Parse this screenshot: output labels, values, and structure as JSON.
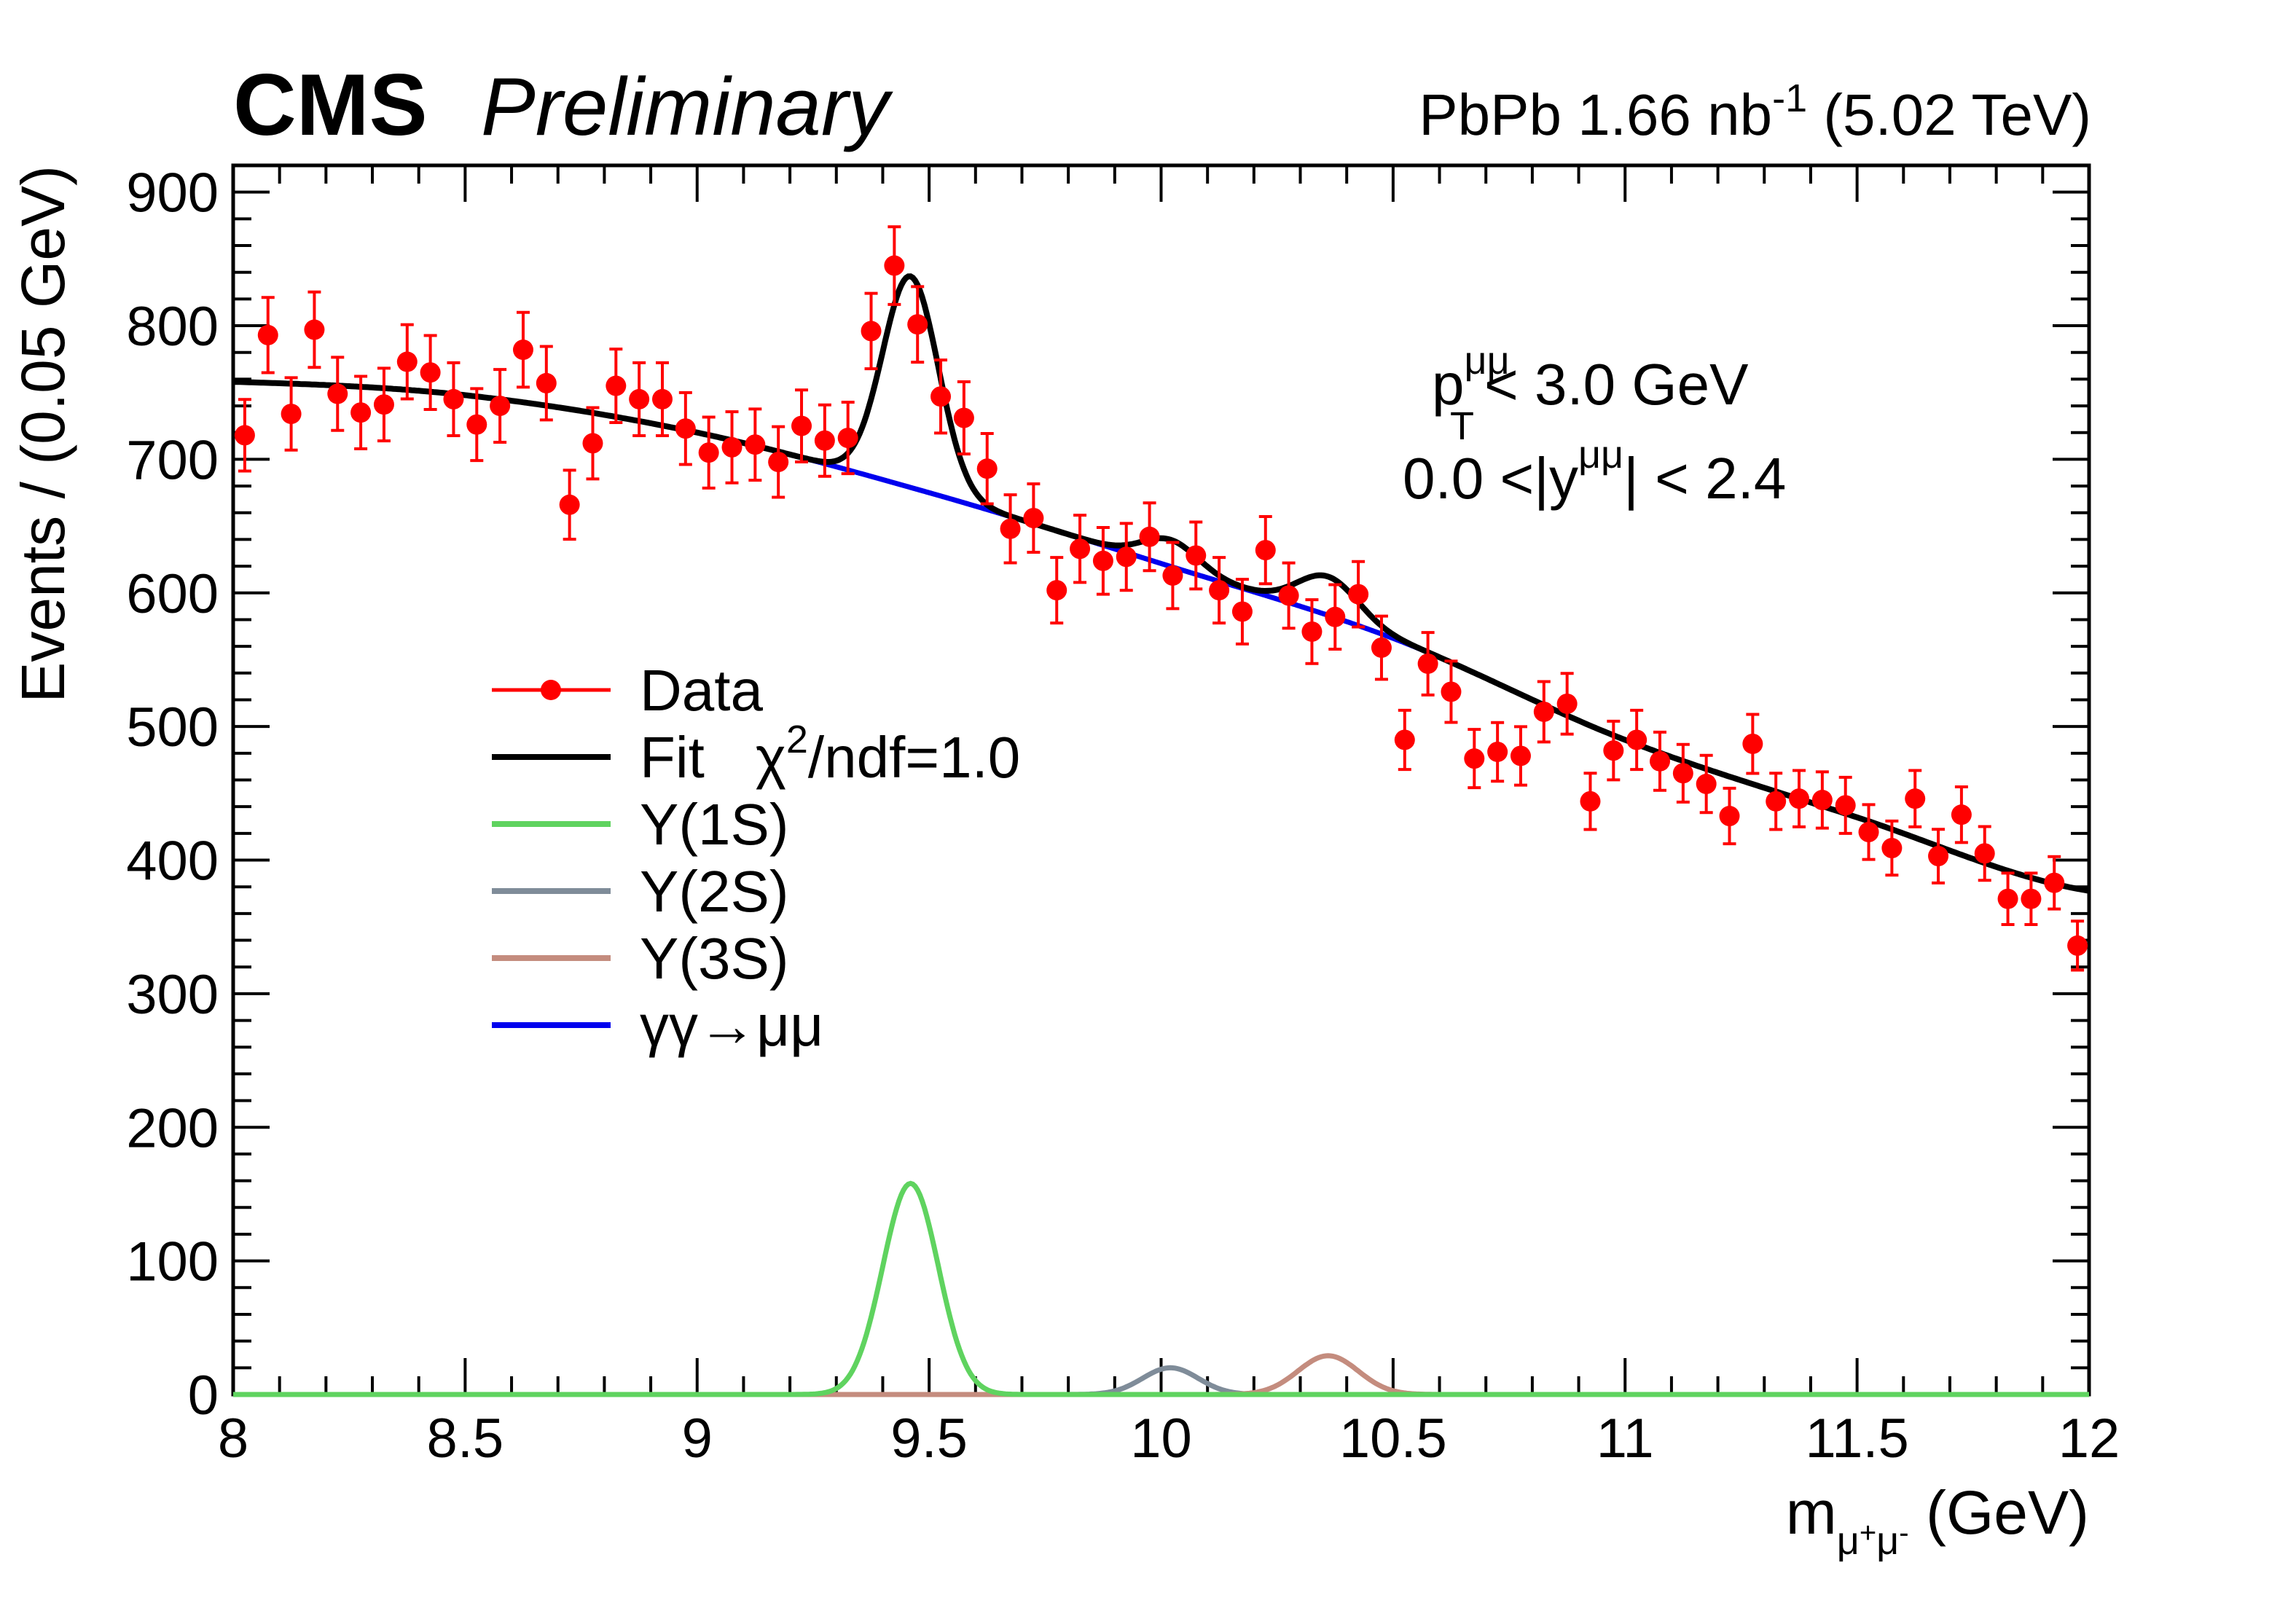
{
  "header": {
    "experiment": "CMS",
    "status": "Preliminary",
    "lumi_prefix": "PbPb 1.66 nb",
    "lumi_exp": "-1",
    "lumi_suffix": "(5.02 TeV)"
  },
  "cuts": {
    "pt_p": "p",
    "pt_sup": "μμ",
    "pt_sub": "T",
    "pt_rest": "< 3.0 GeV",
    "y_prefix": "0.0 <|y",
    "y_sup": "μμ",
    "y_rest": "| < 2.4"
  },
  "legend": {
    "data": "Data",
    "fit": "Fit",
    "chi_symbol": "χ",
    "chi_exp": "2",
    "chi_rest": "/ndf=1.0",
    "y1s": "Υ(1S)",
    "y2s": "Υ(2S)",
    "y3s": "Υ(3S)",
    "gg": "γγ→μμ"
  },
  "xaxis": {
    "m": "m",
    "sub_mu1": "μ",
    "sup_plus": "+",
    "sub_mu2": "μ",
    "sup_minus": "-",
    "unit": "(GeV)"
  },
  "chart_data": {
    "type": "line",
    "title": "",
    "xlabel": "m_{μ+μ-} (GeV)",
    "ylabel": "Events / (0.05 GeV)",
    "xlim": [
      8,
      12
    ],
    "ylim": [
      0,
      920
    ],
    "xticks": [
      8,
      8.5,
      9,
      9.5,
      10,
      10.5,
      11,
      11.5,
      12
    ],
    "xtick_labels": [
      "8",
      "8.5",
      "9",
      "9.5",
      "10",
      "10.5",
      "11",
      "11.5",
      "12"
    ],
    "yticks": [
      0,
      100,
      200,
      300,
      400,
      500,
      600,
      700,
      800,
      900
    ],
    "ytick_labels": [
      "0",
      "100",
      "200",
      "300",
      "400",
      "500",
      "600",
      "700",
      "800",
      "900"
    ],
    "colors": {
      "data": "#ff0000",
      "fit": "#000000",
      "y1s": "#5fd35f",
      "y2s": "#7f8c99",
      "y3s": "#c48c7e",
      "gg": "#0000ee"
    },
    "data_points": {
      "x": [
        8.025,
        8.075,
        8.125,
        8.175,
        8.225,
        8.275,
        8.325,
        8.375,
        8.425,
        8.475,
        8.525,
        8.575,
        8.625,
        8.675,
        8.725,
        8.775,
        8.825,
        8.875,
        8.925,
        8.975,
        9.025,
        9.075,
        9.125,
        9.175,
        9.225,
        9.275,
        9.325,
        9.375,
        9.425,
        9.475,
        9.525,
        9.575,
        9.625,
        9.675,
        9.725,
        9.775,
        9.825,
        9.875,
        9.925,
        9.975,
        10.025,
        10.075,
        10.125,
        10.175,
        10.225,
        10.275,
        10.325,
        10.375,
        10.425,
        10.475,
        10.525,
        10.575,
        10.625,
        10.675,
        10.725,
        10.775,
        10.825,
        10.875,
        10.925,
        10.975,
        11.025,
        11.075,
        11.125,
        11.175,
        11.225,
        11.275,
        11.325,
        11.375,
        11.425,
        11.475,
        11.525,
        11.575,
        11.625,
        11.675,
        11.725,
        11.775,
        11.825,
        11.875,
        11.925,
        11.975
      ],
      "y": [
        718,
        793,
        734,
        797,
        749,
        735,
        741,
        773,
        765,
        745,
        726,
        740,
        782,
        757,
        666,
        712,
        755,
        745,
        745,
        723,
        705,
        709,
        711,
        698,
        725,
        714,
        716,
        796,
        845,
        801,
        747,
        731,
        693,
        648,
        656,
        602,
        633,
        624,
        627,
        642,
        613,
        628,
        602,
        586,
        632,
        598,
        571,
        582,
        599,
        559,
        490,
        547,
        526,
        476,
        481,
        478,
        511,
        517,
        444,
        482,
        490,
        474,
        465,
        457,
        433,
        487,
        444,
        446,
        445,
        441,
        421,
        409,
        446,
        403,
        434,
        405,
        371,
        371,
        383,
        336
      ]
    },
    "series": [
      {
        "name": "Fit",
        "function": "gg + y1s + y2s + y3s"
      },
      {
        "name": "Υ(1S)",
        "shape": "gaussian",
        "mean": 9.46,
        "sigma": 0.06,
        "amplitude": 158
      },
      {
        "name": "Υ(2S)",
        "shape": "gaussian",
        "mean": 10.02,
        "sigma": 0.06,
        "amplitude": 20
      },
      {
        "name": "Υ(3S)",
        "shape": "gaussian",
        "mean": 10.36,
        "sigma": 0.065,
        "amplitude": 29
      },
      {
        "name": "γγ→μμ",
        "shape": "smooth_background",
        "x": [
          8.0,
          8.5,
          9.0,
          9.5,
          10.0,
          10.5,
          11.0,
          11.5,
          12.0
        ],
        "y": [
          758,
          748,
          720,
          675,
          622,
          566,
          490,
          432,
          377
        ]
      }
    ]
  }
}
